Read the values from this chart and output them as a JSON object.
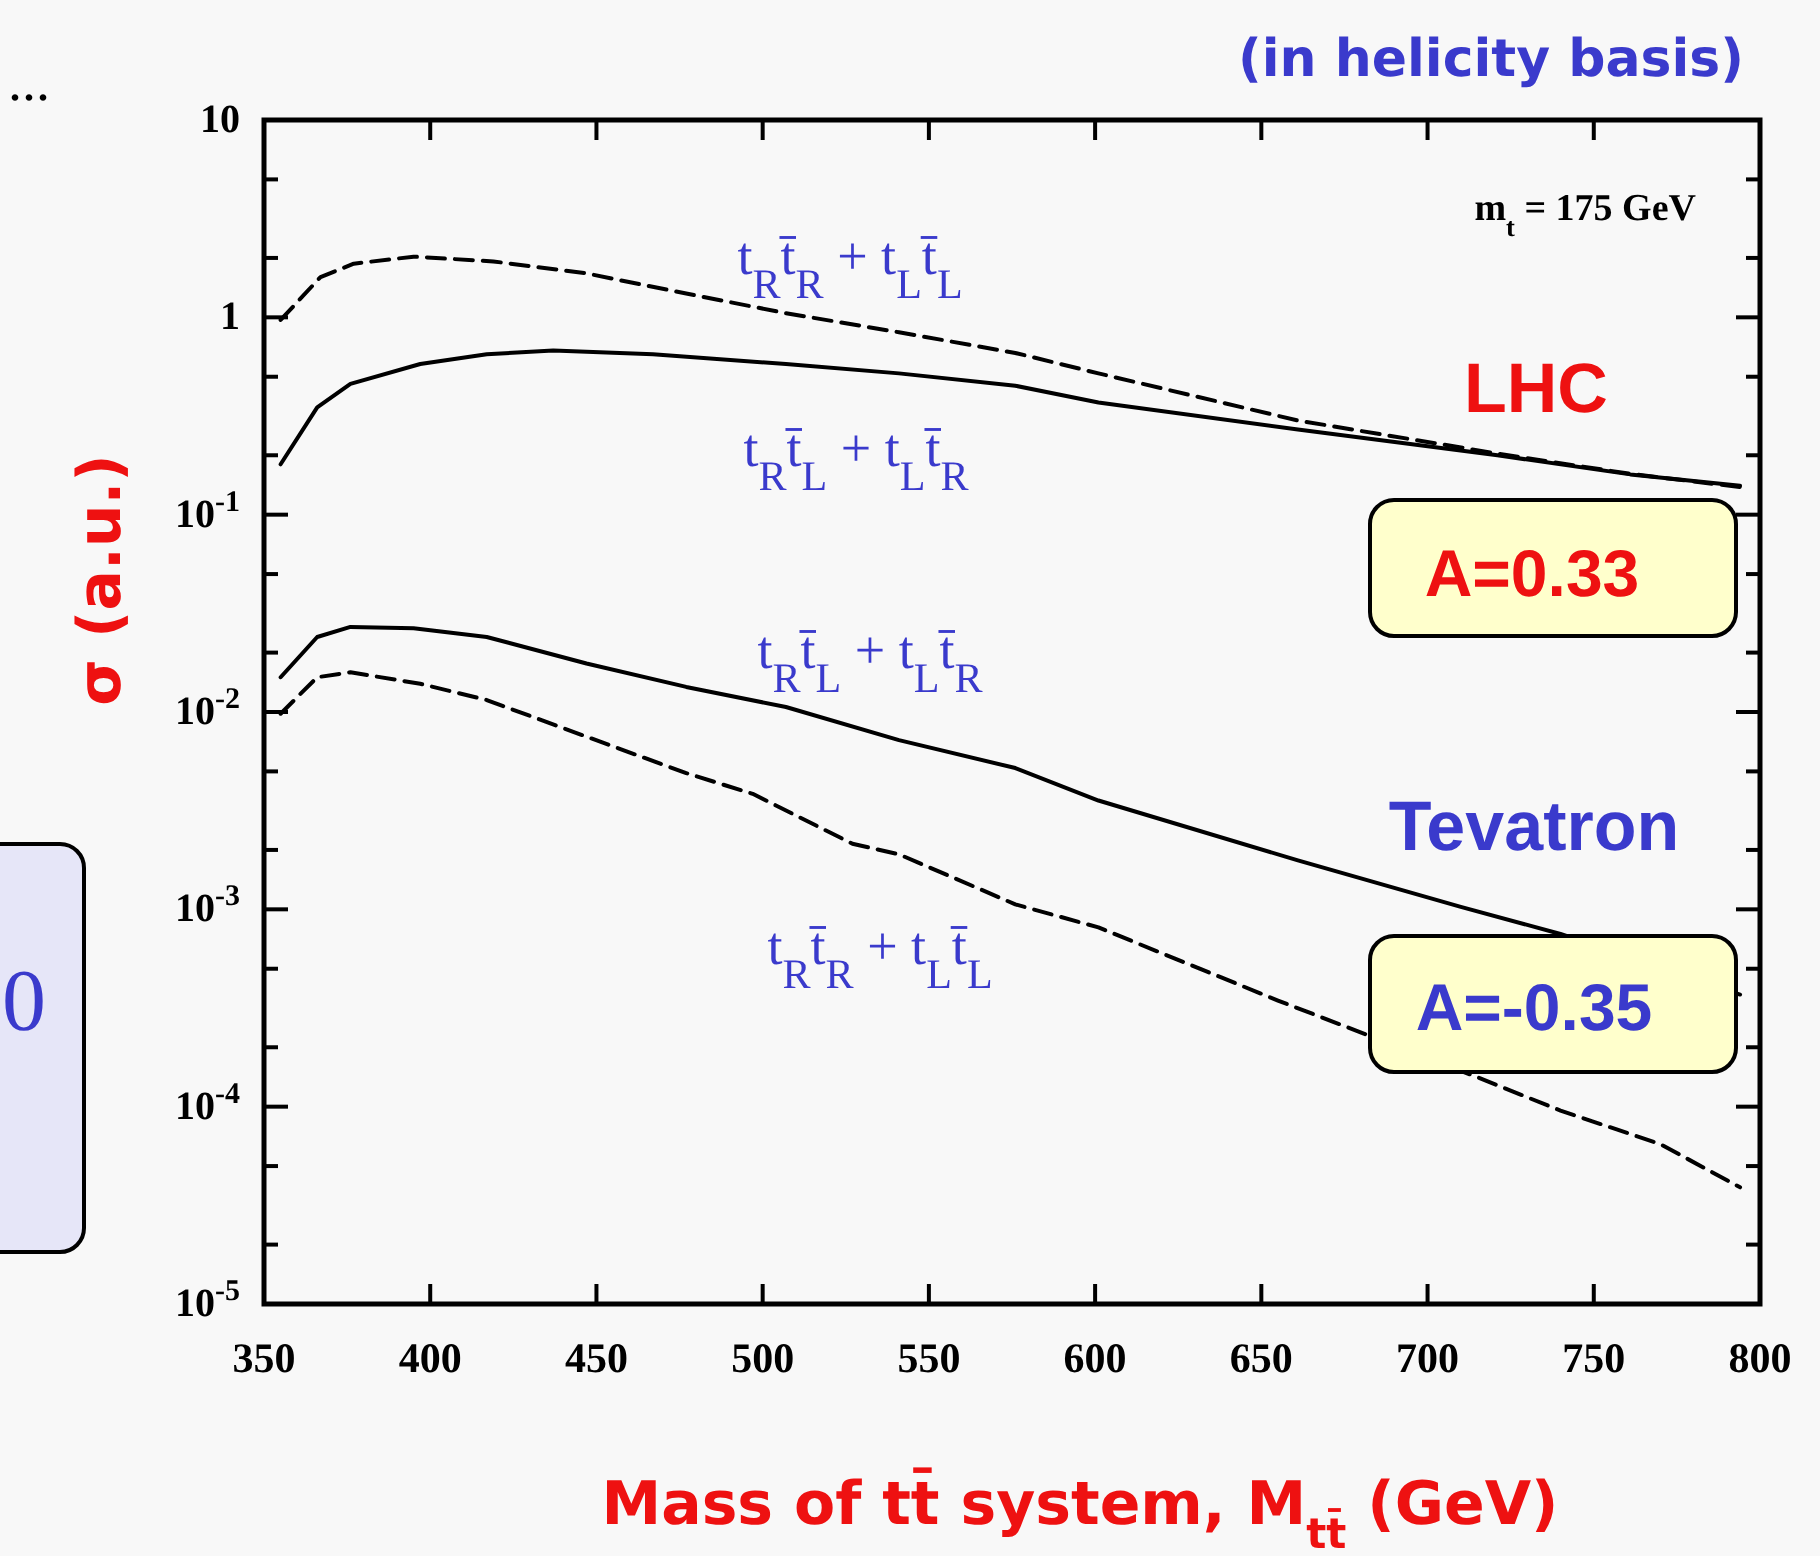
{
  "chart_data": {
    "type": "line",
    "title": "(in helicity basis)",
    "xlabel": "Mass of tt̄ system, M$_{tt̄}$ (GeV)",
    "ylabel": "σ (a.u.)",
    "annotations": [
      "m$_{t}$ = 175 GeV",
      "LHC",
      "A=0.33",
      "Tevatron",
      "A=-0.35",
      "...",
      "0"
    ],
    "log": "y",
    "legend": false,
    "grid": false,
    "marker": "none",
    "xlim": [
      350,
      800
    ],
    "xticks": [
      350,
      400,
      450,
      500,
      550,
      600,
      650,
      700,
      750,
      800
    ],
    "ylim": [
      1e-05,
      10
    ],
    "yticks": [
      {
        "value": 1e-05,
        "label": "10$^{-5}$"
      },
      {
        "value": 2e-05,
        "label": null
      },
      {
        "value": 5e-05,
        "label": null
      },
      {
        "value": 0.0001,
        "label": "10$^{-4}$"
      },
      {
        "value": 0.0002,
        "label": null
      },
      {
        "value": 0.0005,
        "label": null
      },
      {
        "value": 0.001,
        "label": "10$^{-3}$"
      },
      {
        "value": 0.002,
        "label": null
      },
      {
        "value": 0.005,
        "label": null
      },
      {
        "value": 0.01,
        "label": "10$^{-2}$"
      },
      {
        "value": 0.02,
        "label": null
      },
      {
        "value": 0.05,
        "label": null
      },
      {
        "value": 0.1,
        "label": "10$^{-1}$"
      },
      {
        "value": 0.2,
        "label": null
      },
      {
        "value": 0.5,
        "label": null
      },
      1,
      {
        "value": 2,
        "label": null
      },
      {
        "value": 5,
        "label": null
      },
      10
    ],
    "series": [
      {
        "name": "t$_{R}$t̄$_{R}$ + t$_{L}$t̄$_{L}$",
        "color": "#000000",
        "line_style": "dashed",
        "x": [
          355,
          367,
          377,
          395,
          419,
          447,
          477,
          507,
          541,
          576,
          601,
          661,
          721,
          761,
          794
        ],
        "values": [
          0.97,
          1.6,
          1.87,
          2.03,
          1.92,
          1.67,
          1.32,
          1.05,
          0.84,
          0.66,
          0.52,
          0.3,
          0.204,
          0.161,
          0.138
        ]
      },
      {
        "name": "t$_{R}$t̄$_{L}$ + t$_{L}$t̄$_{R}$",
        "color": "#000000",
        "line_style": "solid",
        "x": [
          355,
          366,
          376,
          397,
          417,
          437,
          467,
          507,
          541,
          576,
          601,
          661,
          721,
          761,
          794
        ],
        "values": [
          0.18,
          0.35,
          0.46,
          0.58,
          0.65,
          0.68,
          0.65,
          0.58,
          0.52,
          0.45,
          0.37,
          0.27,
          0.2,
          0.16,
          0.14
        ]
      },
      {
        "name": "t$_{R}$t̄$_{L}$ + t$_{L}$t̄$_{R}$",
        "color": "#000000",
        "line_style": "solid",
        "x": [
          355,
          366,
          376,
          395,
          417,
          447,
          477,
          507,
          541,
          576,
          601,
          661,
          710,
          740,
          794
        ],
        "values": [
          0.015,
          0.024,
          0.027,
          0.0266,
          0.024,
          0.0176,
          0.0134,
          0.0106,
          0.0072,
          0.0052,
          0.00356,
          0.00177,
          0.00103,
          0.00075,
          0.00037
        ]
      },
      {
        "name": "t$_{R}$t̄$_{R}$ + t$_{L}$t̄$_{L}$",
        "color": "#000000",
        "line_style": "dashed",
        "x": [
          355,
          366,
          376,
          397,
          417,
          447,
          477,
          497,
          527,
          541,
          576,
          601,
          655,
          681,
          715,
          740,
          770,
          794
        ],
        "values": [
          0.0098,
          0.015,
          0.0159,
          0.0139,
          0.0115,
          0.0075,
          0.0049,
          0.00385,
          0.00215,
          0.0019,
          0.00106,
          0.00081,
          0.000345,
          0.000234,
          0.000141,
          9.55e-05,
          6.46e-05,
          3.9e-05
        ]
      }
    ]
  }
}
